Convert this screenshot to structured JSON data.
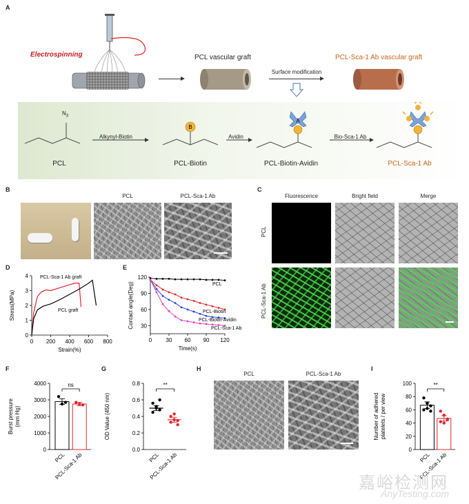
{
  "panel_letters": {
    "A": "A",
    "B": "B",
    "C": "C",
    "D": "D",
    "E": "E",
    "F": "F",
    "G": "G",
    "H": "H",
    "I": "I"
  },
  "panelA": {
    "electrospinning": "Electrospinning",
    "pcl_graft": "PCL vascular graft",
    "sca_graft": "PCL-Sca-1 Ab vascular graft",
    "surface_mod": "Surface modification",
    "n3": "N",
    "n3_sub": "3",
    "step1": "Alkynyl-Biotin",
    "step2": "Avidin",
    "step3": "Bio-Sca-1 Ab",
    "mol1": "PCL",
    "mol2": "PCL-Biotin",
    "mol3": "PCL-Biotin-Avidin",
    "mol4": "PCL-Sca-1 Ab",
    "b": "B",
    "a": "A"
  },
  "panelB": {
    "col1": "PCL",
    "col2": "PCL-Sca-1 Ab"
  },
  "panelC": {
    "col1": "Fluorescence",
    "col2": "Bright field",
    "col3": "Merge",
    "row1": "PCL",
    "row2": "PCL-Sca-1 Ab"
  },
  "panelH": {
    "col1": "PCL",
    "col2": "PCL-Sca-1 Ab"
  },
  "watermark": {
    "cn": "嘉峪检测网",
    "en": "AnyTesting.com"
  },
  "colors": {
    "pcl": "#000000",
    "sca": "#e0262a",
    "avidin": "#2b45d6",
    "biotin_ab": "#e040c8",
    "orange": "#c8651b"
  },
  "chart_data": [
    {
      "id": "D",
      "type": "line",
      "xlabel": "Strain(%)",
      "ylabel": "Stress(MPa)",
      "xlim": [
        0,
        800
      ],
      "ylim": [
        0,
        4
      ],
      "xticks": [
        "0",
        "200",
        "400",
        "600",
        "800"
      ],
      "yticks": [
        "0",
        "1",
        "2",
        "3",
        "4"
      ],
      "series": [
        {
          "name": "PCL-Sca-1 Ab graft",
          "x": [
            0,
            20,
            60,
            100,
            150,
            200,
            300,
            400,
            450,
            500,
            520
          ],
          "y": [
            0,
            1.5,
            2.6,
            2.9,
            3.05,
            3.0,
            3.2,
            3.4,
            3.5,
            3.5,
            1.9
          ]
        },
        {
          "name": "PCL graft",
          "x": [
            0,
            20,
            60,
            120,
            200,
            300,
            400,
            500,
            600,
            640,
            680
          ],
          "y": [
            0,
            1.1,
            1.7,
            1.95,
            2.1,
            2.4,
            2.75,
            3.1,
            3.5,
            3.7,
            2.0
          ]
        }
      ]
    },
    {
      "id": "E",
      "type": "line",
      "xlabel": "Time(s)",
      "ylabel": "Contact angle(Deg)",
      "xlim": [
        0,
        120
      ],
      "ylim": [
        15,
        120
      ],
      "xticks": [
        "0",
        "30",
        "60",
        "90",
        "120"
      ],
      "yticks": [
        "30",
        "60",
        "90",
        "120"
      ],
      "series": [
        {
          "name": "PCL",
          "x": [
            0,
            10,
            20,
            30,
            40,
            50,
            60,
            70,
            80,
            90,
            100,
            110,
            120
          ],
          "y": [
            118,
            117,
            117,
            117,
            116,
            116,
            116,
            116,
            116,
            115,
            115,
            115,
            114
          ]
        },
        {
          "name": "PCL-Biotin",
          "x": [
            0,
            10,
            20,
            30,
            40,
            50,
            60,
            70,
            80,
            90,
            100,
            110,
            120
          ],
          "y": [
            115,
            105,
            97,
            92,
            88,
            82,
            79,
            76,
            72,
            69,
            66,
            63,
            60
          ]
        },
        {
          "name": "PCL-Biotin-Avidin",
          "x": [
            0,
            10,
            20,
            30,
            40,
            50,
            60,
            70,
            80,
            90,
            100,
            110,
            120
          ],
          "y": [
            115,
            98,
            85,
            78,
            72,
            64,
            60,
            56,
            52,
            48,
            46,
            45,
            44
          ]
        },
        {
          "name": "PCL-Sca-1 Ab",
          "x": [
            0,
            10,
            20,
            30,
            40,
            50,
            60,
            70,
            80,
            90,
            100,
            110,
            120
          ],
          "y": [
            115,
            92,
            70,
            57,
            47,
            40,
            38,
            36,
            34,
            33,
            32,
            31,
            30
          ]
        }
      ]
    },
    {
      "id": "F",
      "type": "bar",
      "ylabel_lines": [
        "Burst pressure",
        "(mm Hg)"
      ],
      "categories": [
        "PCL",
        "PCL-Sca-1 Ab"
      ],
      "values": [
        2900,
        2750
      ],
      "errors": [
        170,
        100
      ],
      "points": [
        [
          3200,
          2750,
          2850
        ],
        [
          2850,
          2750,
          2700
        ]
      ],
      "ylim": [
        0,
        4000
      ],
      "yticks": [
        "0",
        "1000",
        "2000",
        "3000",
        "4000"
      ],
      "significance": "ns"
    },
    {
      "id": "G",
      "type": "scatter",
      "ylabel": "OD Value (450 nm)",
      "categories": [
        "PCL",
        "PCL-Sca-1 Ab"
      ],
      "values": [
        0.5,
        0.36
      ],
      "errors": [
        0.03,
        0.03
      ],
      "points": [
        [
          0.56,
          0.5,
          0.48,
          0.45,
          0.52,
          0.6
        ],
        [
          0.4,
          0.36,
          0.3,
          0.33,
          0.43,
          0.35
        ]
      ],
      "ylim": [
        0,
        0.8
      ],
      "yticks": [
        "0.0",
        "0.2",
        "0.4",
        "0.6",
        "0.8"
      ],
      "significance": "**"
    },
    {
      "id": "I",
      "type": "bar",
      "ylabel_lines": [
        "Number of adhered",
        "platelets / per view"
      ],
      "categories": [
        "PCL",
        "PCL-Sca-1 Ab"
      ],
      "values": [
        67,
        47
      ],
      "errors": [
        5,
        4
      ],
      "points": [
        [
          78,
          70,
          66,
          60,
          62,
          58
        ],
        [
          58,
          52,
          46,
          42,
          40,
          45
        ]
      ],
      "ylim": [
        0,
        100
      ],
      "yticks": [
        "0",
        "20",
        "40",
        "60",
        "80",
        "100"
      ],
      "significance": "**"
    }
  ]
}
